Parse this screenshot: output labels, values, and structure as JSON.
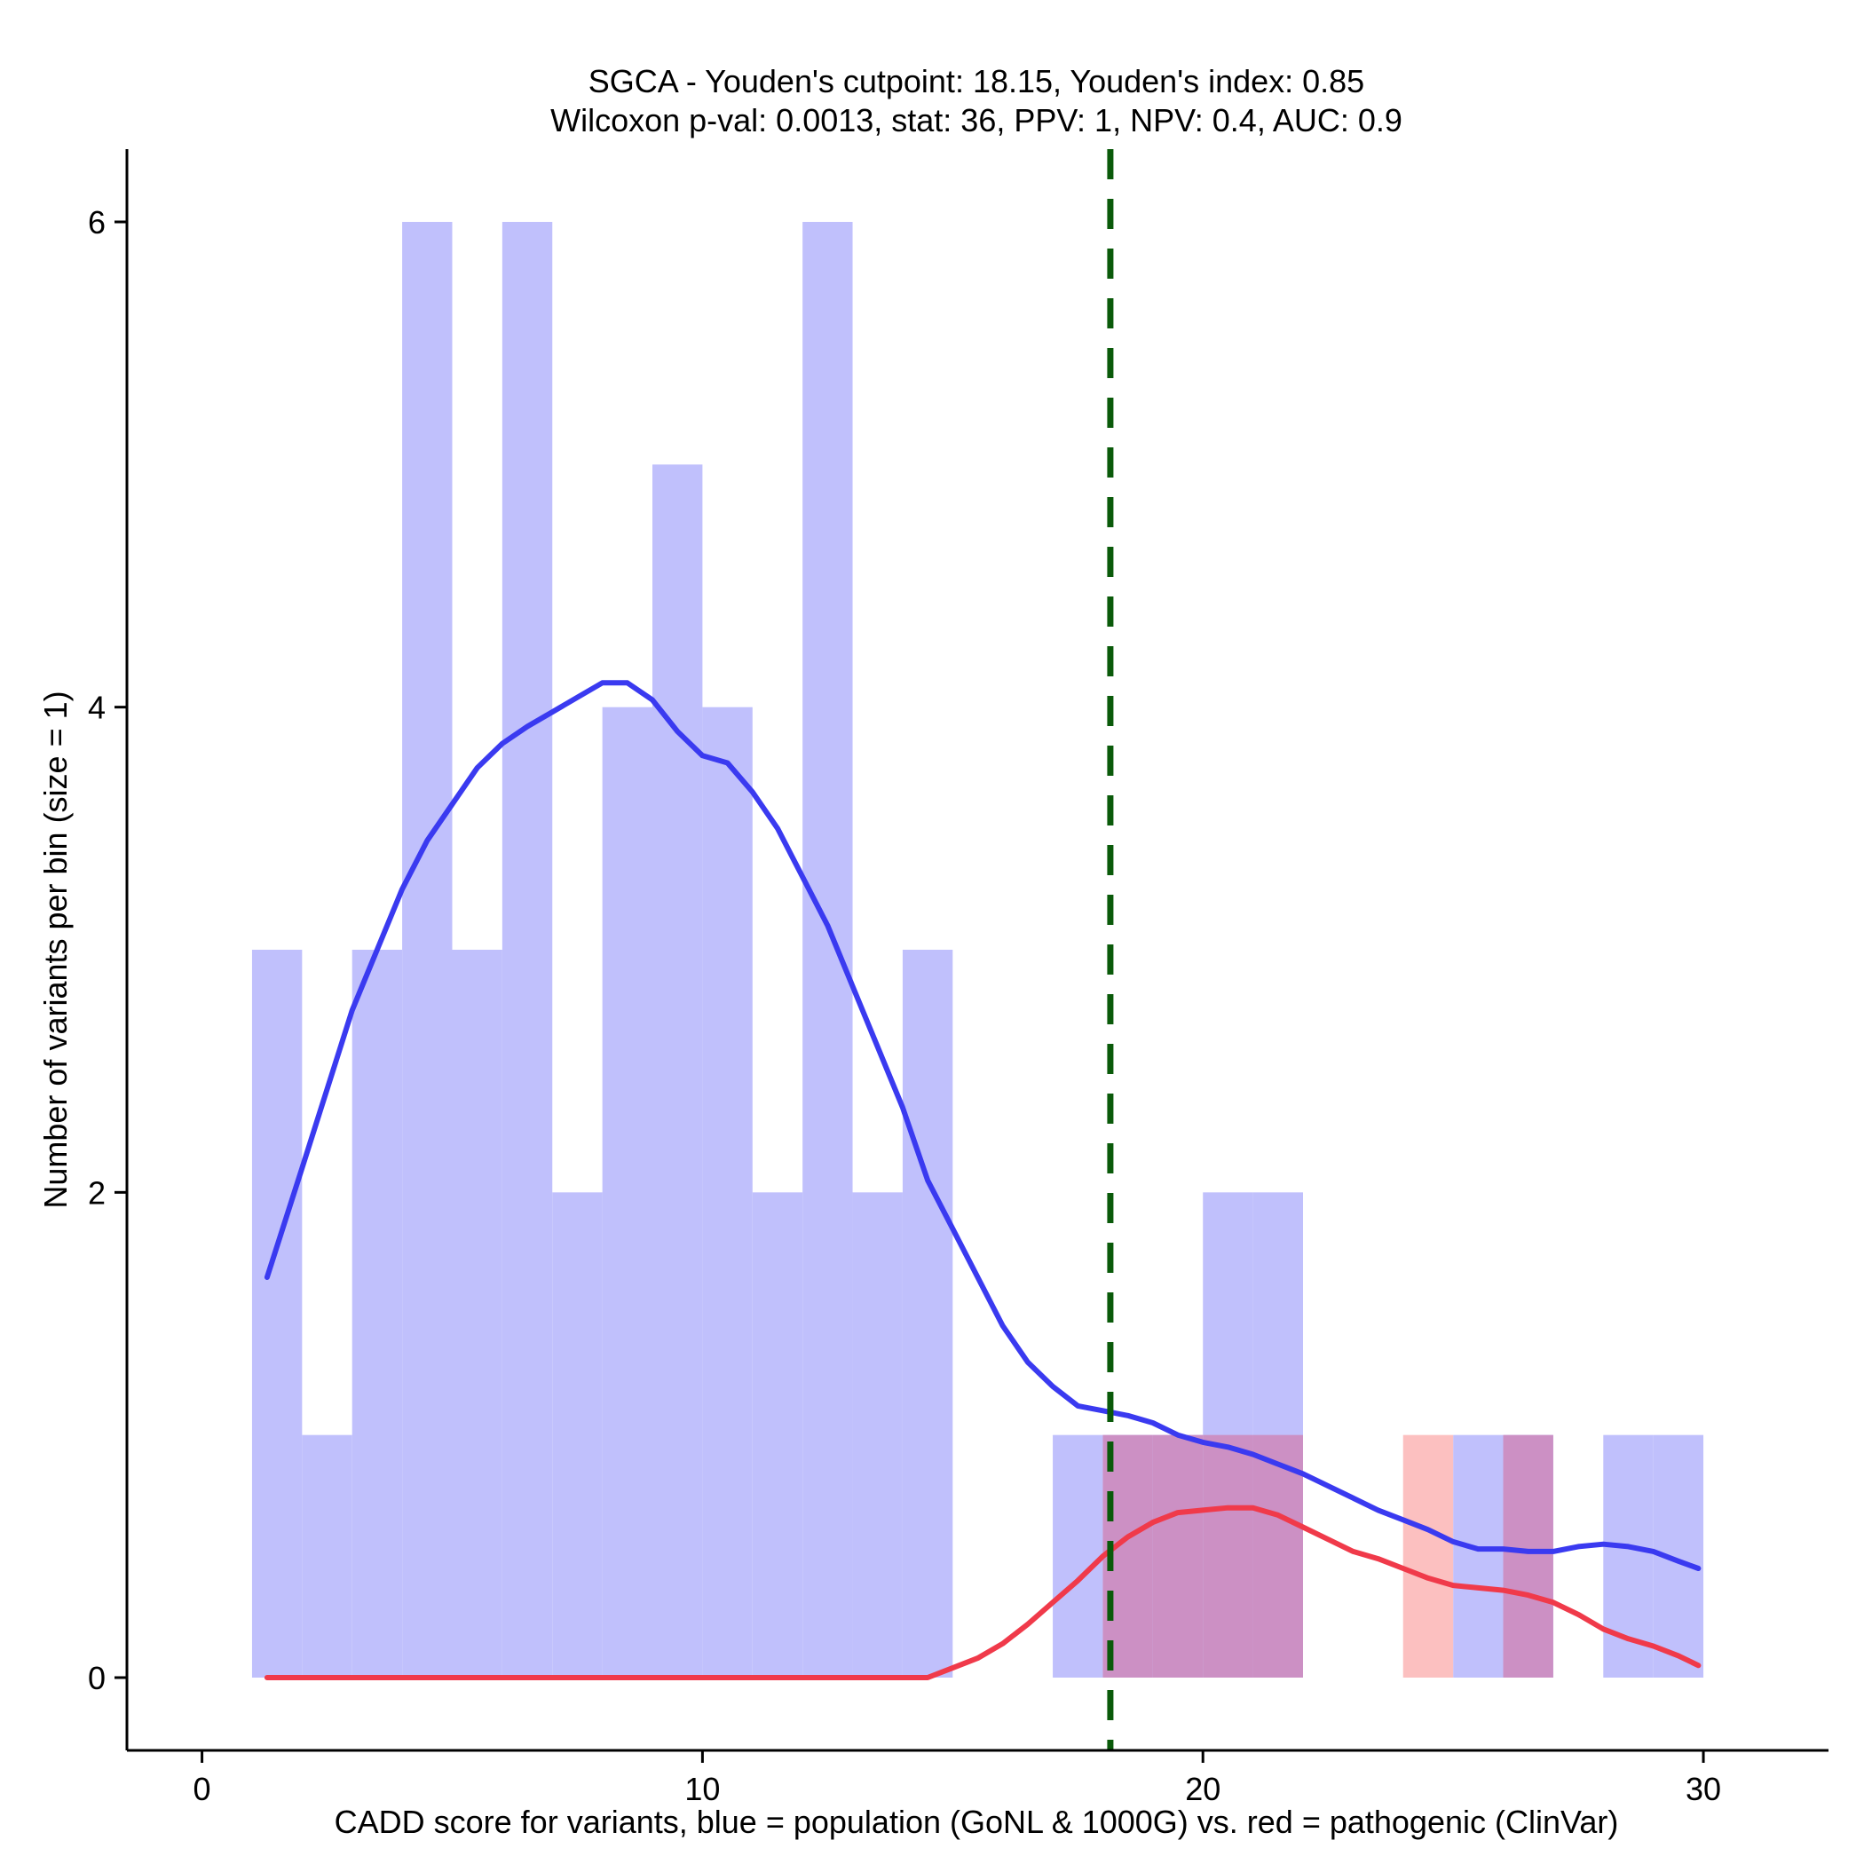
{
  "chart_data": {
    "type": "histogram",
    "title_line1": "SGCA - Youden's cutpoint: 18.15, Youden's index: 0.85",
    "title_line2": "Wilcoxon p-val: 0.0013, stat: 36, PPV: 1, NPV: 0.4, AUC: 0.9",
    "xlabel": "CADD score for variants, blue = population (GoNL & 1000G) vs. red = pathogenic (ClinVar)",
    "ylabel": "Number of variants per bin (size = 1)",
    "xlim": [
      -1.5,
      32.5
    ],
    "ylim": [
      -0.3,
      6.3
    ],
    "x_ticks": [
      0,
      10,
      20,
      30
    ],
    "y_ticks": [
      0,
      2,
      4,
      6
    ],
    "cutpoint": 18.15,
    "colors": {
      "population_fill": "#c0c0fc",
      "pathogenic_fill": "#fcc0c0",
      "overlap_fill": "#cc90c4",
      "population_line": "#3a3af0",
      "pathogenic_line": "#f03a4a",
      "cutpoint_line": "#0a5a0a"
    },
    "series": [
      {
        "name": "population",
        "bins": [
          {
            "x0": 1,
            "x1": 2,
            "count": 3
          },
          {
            "x0": 2,
            "x1": 3,
            "count": 1
          },
          {
            "x0": 3,
            "x1": 4,
            "count": 3
          },
          {
            "x0": 4,
            "x1": 5,
            "count": 6
          },
          {
            "x0": 5,
            "x1": 6,
            "count": 3
          },
          {
            "x0": 6,
            "x1": 7,
            "count": 6
          },
          {
            "x0": 7,
            "x1": 8,
            "count": 2
          },
          {
            "x0": 8,
            "x1": 9,
            "count": 4
          },
          {
            "x0": 9,
            "x1": 10,
            "count": 5
          },
          {
            "x0": 10,
            "x1": 11,
            "count": 4
          },
          {
            "x0": 11,
            "x1": 12,
            "count": 2
          },
          {
            "x0": 12,
            "x1": 13,
            "count": 6
          },
          {
            "x0": 13,
            "x1": 14,
            "count": 2
          },
          {
            "x0": 14,
            "x1": 15,
            "count": 3
          },
          {
            "x0": 17,
            "x1": 18,
            "count": 1
          },
          {
            "x0": 18,
            "x1": 19,
            "count": 1
          },
          {
            "x0": 19,
            "x1": 20,
            "count": 1
          },
          {
            "x0": 20,
            "x1": 21,
            "count": 2
          },
          {
            "x0": 21,
            "x1": 22,
            "count": 2
          },
          {
            "x0": 25,
            "x1": 26,
            "count": 1
          },
          {
            "x0": 26,
            "x1": 27,
            "count": 1
          },
          {
            "x0": 28,
            "x1": 29,
            "count": 1
          },
          {
            "x0": 29,
            "x1": 30,
            "count": 1
          }
        ],
        "density": [
          [
            1.3,
            1.65
          ],
          [
            2.0,
            2.1
          ],
          [
            3.0,
            2.75
          ],
          [
            3.5,
            3.0
          ],
          [
            4.0,
            3.25
          ],
          [
            4.5,
            3.45
          ],
          [
            5.0,
            3.6
          ],
          [
            5.5,
            3.75
          ],
          [
            6.0,
            3.85
          ],
          [
            6.5,
            3.92
          ],
          [
            7.0,
            3.98
          ],
          [
            7.5,
            4.04
          ],
          [
            8.0,
            4.1
          ],
          [
            8.5,
            4.1
          ],
          [
            9.0,
            4.03
          ],
          [
            9.5,
            3.9
          ],
          [
            10.0,
            3.8
          ],
          [
            10.5,
            3.77
          ],
          [
            11.0,
            3.65
          ],
          [
            11.5,
            3.5
          ],
          [
            12.0,
            3.3
          ],
          [
            12.5,
            3.1
          ],
          [
            13.0,
            2.85
          ],
          [
            13.5,
            2.6
          ],
          [
            14.0,
            2.35
          ],
          [
            14.5,
            2.05
          ],
          [
            15.0,
            1.85
          ],
          [
            15.5,
            1.65
          ],
          [
            16.0,
            1.45
          ],
          [
            16.5,
            1.3
          ],
          [
            17.0,
            1.2
          ],
          [
            17.5,
            1.12
          ],
          [
            18.0,
            1.1
          ],
          [
            18.5,
            1.08
          ],
          [
            19.0,
            1.05
          ],
          [
            19.5,
            1.0
          ],
          [
            20.0,
            0.97
          ],
          [
            20.5,
            0.95
          ],
          [
            21.0,
            0.92
          ],
          [
            21.5,
            0.88
          ],
          [
            22.0,
            0.84
          ],
          [
            22.5,
            0.79
          ],
          [
            23.0,
            0.74
          ],
          [
            23.5,
            0.69
          ],
          [
            24.0,
            0.65
          ],
          [
            24.5,
            0.61
          ],
          [
            25.0,
            0.56
          ],
          [
            25.5,
            0.53
          ],
          [
            26.0,
            0.53
          ],
          [
            26.5,
            0.52
          ],
          [
            27.0,
            0.52
          ],
          [
            27.5,
            0.54
          ],
          [
            28.0,
            0.55
          ],
          [
            28.5,
            0.54
          ],
          [
            29.0,
            0.52
          ],
          [
            29.5,
            0.48
          ],
          [
            29.9,
            0.45
          ]
        ]
      },
      {
        "name": "pathogenic",
        "bins": [
          {
            "x0": 18,
            "x1": 19,
            "count": 1
          },
          {
            "x0": 19,
            "x1": 20,
            "count": 1
          },
          {
            "x0": 20,
            "x1": 21,
            "count": 1
          },
          {
            "x0": 21,
            "x1": 22,
            "count": 1
          },
          {
            "x0": 24,
            "x1": 25,
            "count": 1
          },
          {
            "x0": 26,
            "x1": 27,
            "count": 1
          }
        ],
        "density": [
          [
            1.3,
            0.0
          ],
          [
            14.5,
            0.0
          ],
          [
            15.0,
            0.04
          ],
          [
            15.5,
            0.08
          ],
          [
            16.0,
            0.14
          ],
          [
            16.5,
            0.22
          ],
          [
            17.0,
            0.31
          ],
          [
            17.5,
            0.4
          ],
          [
            18.0,
            0.5
          ],
          [
            18.5,
            0.58
          ],
          [
            19.0,
            0.64
          ],
          [
            19.5,
            0.68
          ],
          [
            20.0,
            0.69
          ],
          [
            20.5,
            0.7
          ],
          [
            21.0,
            0.7
          ],
          [
            21.5,
            0.67
          ],
          [
            22.0,
            0.62
          ],
          [
            22.5,
            0.57
          ],
          [
            23.0,
            0.52
          ],
          [
            23.5,
            0.49
          ],
          [
            24.0,
            0.45
          ],
          [
            24.5,
            0.41
          ],
          [
            25.0,
            0.38
          ],
          [
            25.5,
            0.37
          ],
          [
            26.0,
            0.36
          ],
          [
            26.5,
            0.34
          ],
          [
            27.0,
            0.31
          ],
          [
            27.5,
            0.26
          ],
          [
            28.0,
            0.2
          ],
          [
            28.5,
            0.16
          ],
          [
            29.0,
            0.13
          ],
          [
            29.5,
            0.09
          ],
          [
            29.9,
            0.05
          ]
        ]
      }
    ]
  }
}
